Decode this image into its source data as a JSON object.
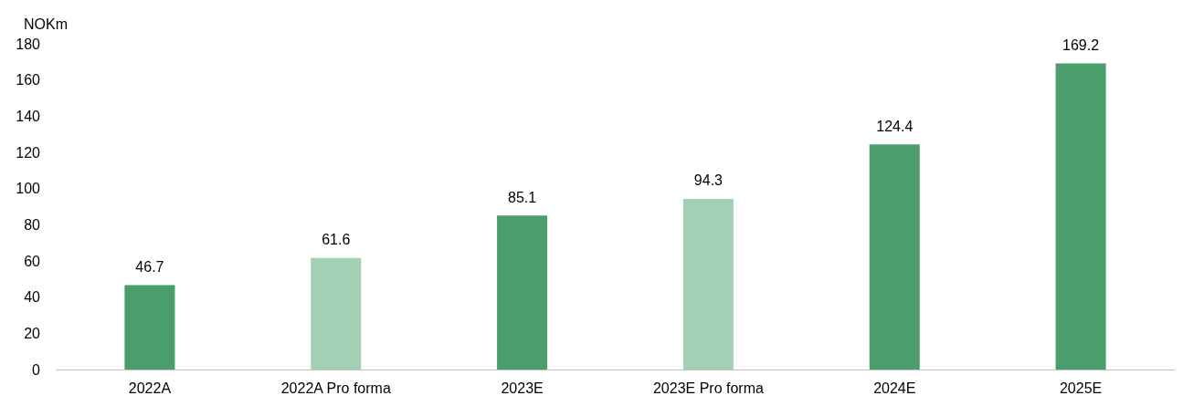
{
  "chart_data": {
    "type": "bar",
    "ylabel": "NOKm",
    "categories": [
      "2022A",
      "2022A Pro forma",
      "2023E",
      "2023E Pro forma",
      "2024E",
      "2025E"
    ],
    "values": [
      46.7,
      61.6,
      85.1,
      94.3,
      124.4,
      169.2
    ],
    "colors": [
      "#4a9e6b",
      "#a3cfb5",
      "#4a9e6b",
      "#a3cfb5",
      "#4a9e6b",
      "#4a9e6b"
    ],
    "ylim": [
      0,
      180
    ],
    "yticks": [
      0,
      20,
      40,
      60,
      80,
      100,
      120,
      140,
      160,
      180
    ],
    "data_labels": true,
    "grid": false
  }
}
